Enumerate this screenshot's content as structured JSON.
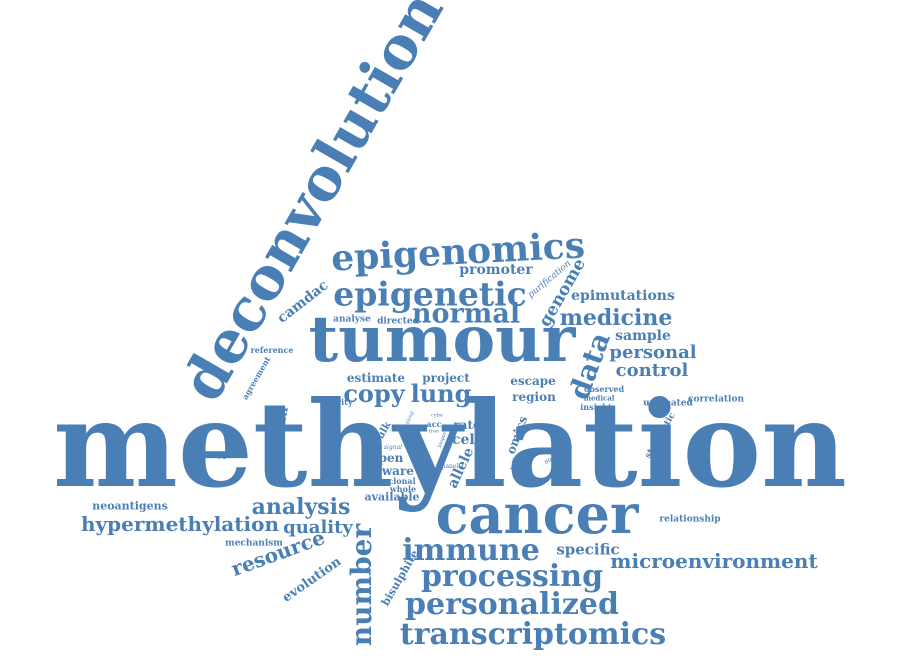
{
  "palette": {
    "word_color": "#4a7fb5",
    "background": "#ffffff"
  },
  "words": [
    {
      "text": "methylation",
      "weight": 100
    },
    {
      "text": "deconvolution",
      "weight": 45
    },
    {
      "text": "tumour",
      "weight": 42
    },
    {
      "text": "cancer",
      "weight": 36
    },
    {
      "text": "epigenomics",
      "weight": 24
    },
    {
      "text": "epigenetic",
      "weight": 22
    },
    {
      "text": "normal",
      "weight": 21
    },
    {
      "text": "copy",
      "weight": 18
    },
    {
      "text": "lung",
      "weight": 18
    },
    {
      "text": "immune",
      "weight": 20
    },
    {
      "text": "processing",
      "weight": 19
    },
    {
      "text": "personalized",
      "weight": 19
    },
    {
      "text": "transcriptomics",
      "weight": 19
    },
    {
      "text": "number",
      "weight": 18
    },
    {
      "text": "data",
      "weight": 18
    },
    {
      "text": "medicine",
      "weight": 14
    },
    {
      "text": "personal",
      "weight": 12
    },
    {
      "text": "control",
      "weight": 12
    },
    {
      "text": "genome",
      "weight": 12
    },
    {
      "text": "analysis",
      "weight": 13
    },
    {
      "text": "hypermethylation",
      "weight": 13
    },
    {
      "text": "quality",
      "weight": 12
    },
    {
      "text": "resource",
      "weight": 12
    },
    {
      "text": "microenvironment",
      "weight": 13
    },
    {
      "text": "specific",
      "weight": 10
    },
    {
      "text": "promoter",
      "weight": 9
    },
    {
      "text": "epimutations",
      "weight": 9
    },
    {
      "text": "sample",
      "weight": 9
    },
    {
      "text": "camdac",
      "weight": 9
    },
    {
      "text": "human",
      "weight": 8
    },
    {
      "text": "evolution",
      "weight": 8
    },
    {
      "text": "bisulphite",
      "weight": 7
    },
    {
      "text": "estimate",
      "weight": 7
    },
    {
      "text": "project",
      "weight": 7
    },
    {
      "text": "region",
      "weight": 7
    },
    {
      "text": "escape",
      "weight": 7
    },
    {
      "text": "cell",
      "weight": 8
    },
    {
      "text": "rate",
      "weight": 7
    },
    {
      "text": "open",
      "weight": 7
    },
    {
      "text": "aware",
      "weight": 7
    },
    {
      "text": "allele",
      "weight": 8
    },
    {
      "text": "omics",
      "weight": 7
    },
    {
      "text": "neoantigens",
      "weight": 6
    },
    {
      "text": "available",
      "weight": 6
    },
    {
      "text": "relationship",
      "weight": 5
    },
    {
      "text": "adjacent",
      "weight": 6
    },
    {
      "text": "analyse",
      "weight": 5
    },
    {
      "text": "directed",
      "weight": 5
    },
    {
      "text": "purification",
      "weight": 5
    },
    {
      "text": "untreated",
      "weight": 5
    },
    {
      "text": "correlation",
      "weight": 5
    },
    {
      "text": "stochastic",
      "weight": 5
    },
    {
      "text": "mechanism",
      "weight": 5
    },
    {
      "text": "genotype",
      "weight": 4
    },
    {
      "text": "agreement",
      "weight": 4
    },
    {
      "text": "reference",
      "weight": 4
    },
    {
      "text": "purity",
      "weight": 4
    },
    {
      "text": "bulk",
      "weight": 5
    },
    {
      "text": "clonal",
      "weight": 4
    },
    {
      "text": "whole",
      "weight": 4
    },
    {
      "text": "insight",
      "weight": 4
    },
    {
      "text": "observed",
      "weight": 4
    },
    {
      "text": "medical",
      "weight": 3
    },
    {
      "text": "survival",
      "weight": 3
    },
    {
      "text": "acc",
      "weight": 3
    },
    {
      "text": "signal",
      "weight": 2
    },
    {
      "text": "panel",
      "weight": 2
    },
    {
      "text": "editing",
      "weight": 2
    },
    {
      "text": "free",
      "weight": 2
    },
    {
      "text": "cybe",
      "weight": 2
    },
    {
      "text": "histo",
      "weight": 2
    },
    {
      "text": "biopsy",
      "weight": 2
    }
  ]
}
